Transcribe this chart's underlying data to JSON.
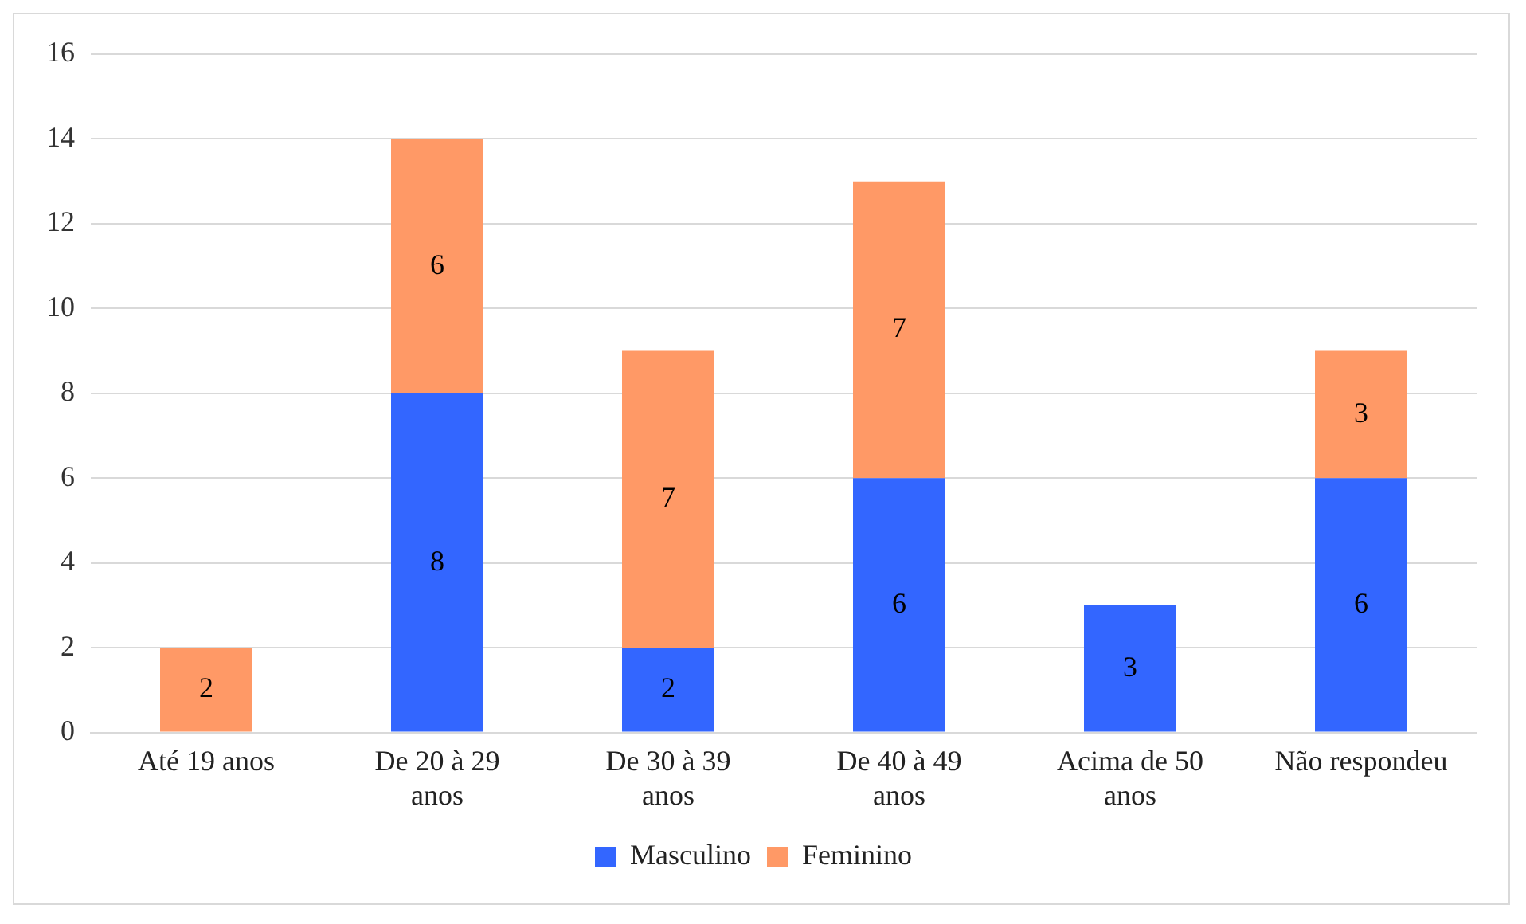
{
  "chart_data": {
    "type": "bar",
    "stacked": true,
    "categories": [
      "Até 19 anos",
      "De 20 à 29 anos",
      "De 30 à 39 anos",
      "De 40 à 49 anos",
      "Acima de 50 anos",
      "Não respondeu"
    ],
    "series": [
      {
        "name": "Masculino",
        "color": "#3366ff",
        "values": [
          null,
          8,
          2,
          6,
          3,
          6
        ]
      },
      {
        "name": "Feminino",
        "color": "#ff9966",
        "values": [
          2,
          6,
          7,
          7,
          null,
          3
        ]
      }
    ],
    "ylim": [
      0,
      16
    ],
    "yticks": [
      0,
      2,
      4,
      6,
      8,
      10,
      12,
      14,
      16
    ],
    "grid": "y",
    "legend": "bottom",
    "data_labels": true
  }
}
